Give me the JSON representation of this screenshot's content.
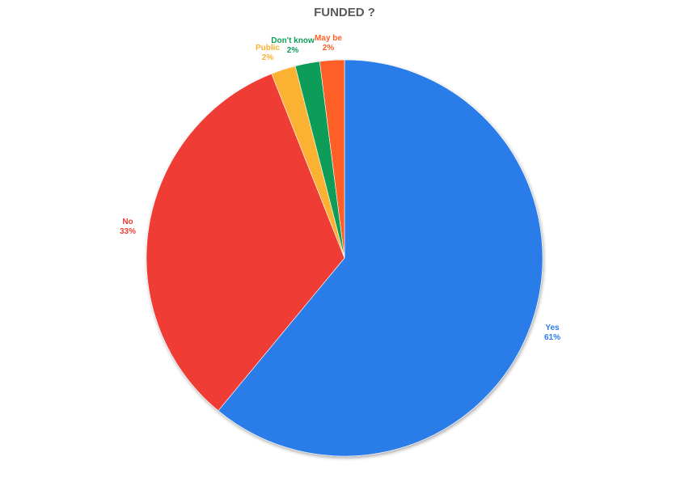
{
  "chart_data": {
    "type": "pie",
    "title": "FUNDED ?",
    "slices": [
      {
        "name": "Yes",
        "value": 61,
        "label": "61%",
        "color": "#2b7be9"
      },
      {
        "name": "No",
        "value": 33,
        "label": "33%",
        "color": "#ef3e36"
      },
      {
        "name": "Public",
        "value": 2,
        "label": "2%",
        "color": "#fbb130"
      },
      {
        "name": "Don't know",
        "value": 2,
        "label": "2%",
        "color": "#0f9d58"
      },
      {
        "name": "May be",
        "value": 2,
        "label": "2%",
        "color": "#ff5e25"
      }
    ],
    "start": "12 o'clock",
    "direction": "clockwise",
    "legend": "none"
  }
}
